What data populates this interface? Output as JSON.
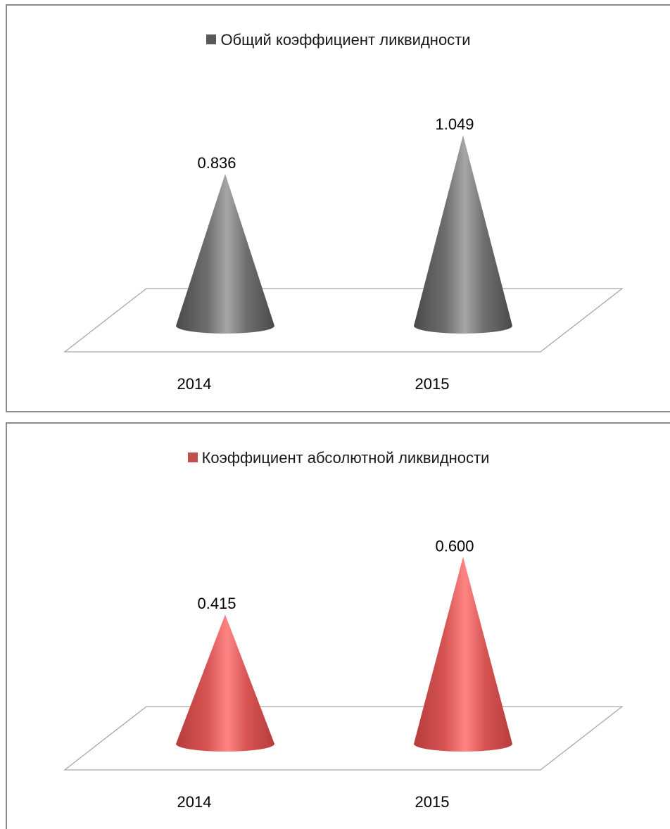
{
  "chart_data": [
    {
      "type": "bar",
      "bar_shape": "cone",
      "categories": [
        "2014",
        "2015"
      ],
      "series": [
        {
          "name": "Общий коэффициент ликвидности",
          "values": [
            0.836,
            1.049
          ],
          "labels": [
            "0.836",
            "1.049"
          ],
          "color": "#7f7f7f"
        }
      ],
      "ylim": [
        0,
        1.2
      ],
      "grid": false,
      "legend_position": "top"
    },
    {
      "type": "bar",
      "bar_shape": "cone",
      "categories": [
        "2014",
        "2015"
      ],
      "series": [
        {
          "name": "Коэффициент абсолютной ликвидности",
          "values": [
            0.415,
            0.6
          ],
          "labels": [
            "0.415",
            "0.600"
          ],
          "color": "#e05a5a"
        }
      ],
      "ylim": [
        0,
        0.7
      ],
      "grid": false,
      "legend_position": "top"
    }
  ]
}
